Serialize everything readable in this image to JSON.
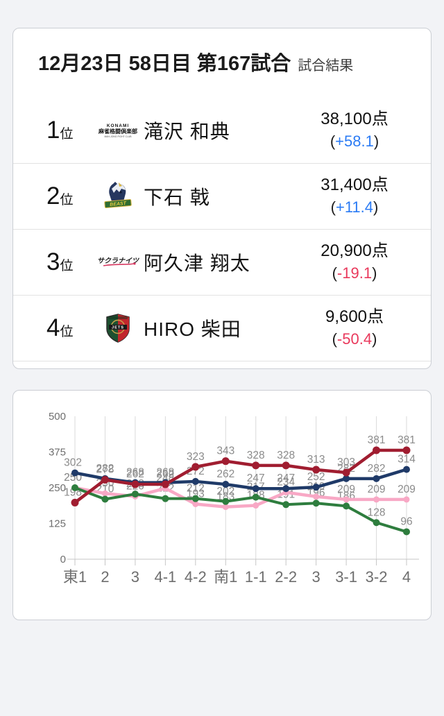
{
  "header": {
    "title": "12月23日  58日目 第167試合",
    "subtitle": "試合結果"
  },
  "labels": {
    "paren_open": "(",
    "paren_close": ")"
  },
  "results": [
    {
      "rank": "1",
      "rank_suffix": "位",
      "team": "konami",
      "team_name": "KONAMI麻雀格闘倶楽部",
      "player": "滝沢 和典",
      "points": "38,100点",
      "delta": "+58.1",
      "delta_sign": "positive"
    },
    {
      "rank": "2",
      "rank_suffix": "位",
      "team": "beast",
      "team_name": "BEAST Japanext",
      "player": "下石 戟",
      "points": "31,400点",
      "delta": "+11.4",
      "delta_sign": "positive"
    },
    {
      "rank": "3",
      "rank_suffix": "位",
      "team": "sakura",
      "team_name": "サクラナイツ",
      "player": "阿久津 翔太",
      "points": "20,900点",
      "delta": "-19.1",
      "delta_sign": "negative"
    },
    {
      "rank": "4",
      "rank_suffix": "位",
      "team": "jets",
      "team_name": "JETS",
      "player": "HIRO 柴田",
      "points": "9,600点",
      "delta": "-50.4",
      "delta_sign": "negative"
    }
  ],
  "colors": {
    "positive": "#2b7bf4",
    "negative": "#e9395c",
    "grid": "#dadada",
    "axis": "#c6c6c6",
    "tick_label": "#6e6e6e",
    "data_label": "#8b8b8b"
  },
  "chart_data": {
    "type": "line",
    "x": [
      "東1",
      "2",
      "3",
      "4-1",
      "4-2",
      "南1",
      "1-1",
      "2-2",
      "3",
      "3-1",
      "3-2",
      "4"
    ],
    "yticks": [
      0,
      125,
      250,
      375,
      500
    ],
    "ylim": [
      0,
      500
    ],
    "grid": "vertical-only",
    "legend": "none",
    "series": [
      {
        "name": "阿久津 翔太",
        "color": "#f8a8c5",
        "line_width": 4.5,
        "dot_r": 4.5,
        "values": [
          250,
          230,
          220,
          248,
          193,
          183,
          188,
          234,
          219,
          209,
          209,
          209
        ]
      },
      {
        "name": "HIRO 柴田",
        "color": "#2e7d3e",
        "line_width": 4,
        "dot_r": 5,
        "values": [
          250,
          210,
          228,
          212,
          212,
          202,
          217,
          191,
          196,
          186,
          128,
          96
        ]
      },
      {
        "name": "下石 戟",
        "color": "#1f3a68",
        "line_width": 4.5,
        "dot_r": 5,
        "values": [
          302,
          282,
          268,
          268,
          272,
          262,
          247,
          247,
          252,
          282,
          282,
          314
        ]
      },
      {
        "name": "滝沢 和典",
        "color": "#a01d30",
        "line_width": 4.5,
        "dot_r": 5.5,
        "values": [
          198,
          278,
          262,
          262,
          323,
          343,
          328,
          328,
          313,
          303,
          381,
          381
        ]
      }
    ]
  }
}
